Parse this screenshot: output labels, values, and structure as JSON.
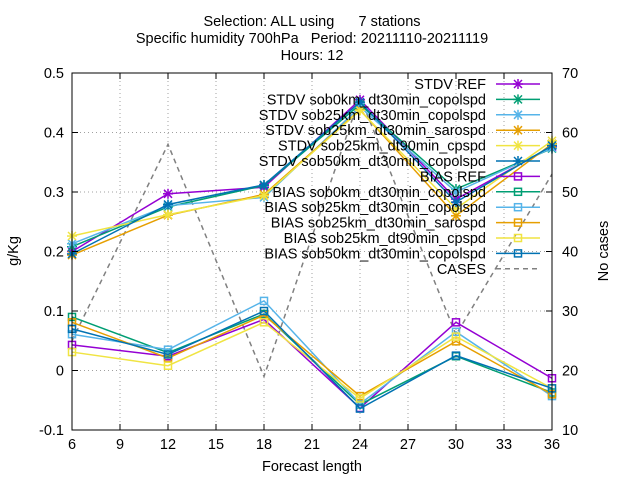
{
  "chart_data": {
    "type": "line",
    "title_lines": [
      "Selection: ALL using      7 stations",
      "Specific humidity 700hPa   Period: 20211110-20211119",
      "Hours: 12"
    ],
    "xlabel": "Forecast length",
    "ylabel": "g/Kg",
    "y2label": "No cases",
    "x": [
      6,
      12,
      18,
      24,
      30,
      36
    ],
    "xlim": [
      6,
      36
    ],
    "ylim": [
      -0.1,
      0.5
    ],
    "y2lim": [
      10,
      70
    ],
    "xticks": [
      6,
      9,
      12,
      15,
      18,
      21,
      24,
      27,
      30,
      33,
      36
    ],
    "yticks": [
      -0.1,
      0,
      0.1,
      0.2,
      0.3,
      0.4,
      0.5
    ],
    "ytick_labels": [
      "-0.1",
      "0",
      "0.1",
      "0.2",
      "0.3",
      "0.4",
      "0.5"
    ],
    "y2ticks": [
      10,
      20,
      30,
      40,
      50,
      60,
      70
    ],
    "grid": true,
    "legend_position": "top-right",
    "series": [
      {
        "name": "STDV REF",
        "color": "#9400d3",
        "marker": "x",
        "values": [
          0.2,
          0.297,
          0.308,
          0.455,
          0.288,
          0.376
        ]
      },
      {
        "name": "STDV sob0km_dt30min_copolspd",
        "color": "#009e73",
        "marker": "x",
        "values": [
          0.208,
          0.275,
          0.311,
          0.447,
          0.305,
          0.373
        ]
      },
      {
        "name": "STDV sob25km_dt30min_copolspd",
        "color": "#56b4e9",
        "marker": "x",
        "values": [
          0.213,
          0.277,
          0.291,
          0.443,
          0.3,
          0.374
        ]
      },
      {
        "name": "STDV sob25km_dt30min_sarospd",
        "color": "#e69f00",
        "marker": "x",
        "values": [
          0.194,
          0.261,
          0.296,
          0.438,
          0.26,
          0.381
        ]
      },
      {
        "name": "STDV sob25km_dt90min_cpspd",
        "color": "#f0e442",
        "marker": "x",
        "values": [
          0.226,
          0.262,
          0.294,
          0.437,
          0.272,
          0.386
        ]
      },
      {
        "name": "STDV sob50km_dt30min_copolspd",
        "color": "#0072b2",
        "marker": "x",
        "values": [
          0.196,
          0.279,
          0.312,
          0.451,
          0.283,
          0.378
        ]
      },
      {
        "name": "BIAS REF",
        "color": "#9400d3",
        "marker": "square",
        "values": [
          0.043,
          0.024,
          0.086,
          -0.063,
          0.081,
          -0.013
        ]
      },
      {
        "name": "BIAS sob0km_dt30min_copolspd",
        "color": "#009e73",
        "marker": "square",
        "values": [
          0.09,
          0.03,
          0.095,
          -0.057,
          0.024,
          -0.037
        ]
      },
      {
        "name": "BIAS sob25km_dt30min_copolspd",
        "color": "#56b4e9",
        "marker": "square",
        "values": [
          0.061,
          0.035,
          0.117,
          -0.056,
          0.065,
          -0.043
        ]
      },
      {
        "name": "BIAS sob25km_dt30min_sarospd",
        "color": "#e69f00",
        "marker": "square",
        "values": [
          0.081,
          0.021,
          0.093,
          -0.043,
          0.049,
          -0.04
        ]
      },
      {
        "name": "BIAS sob25km_dt90min_cpspd",
        "color": "#f0e442",
        "marker": "square",
        "values": [
          0.031,
          0.008,
          0.081,
          -0.047,
          0.057,
          -0.03
        ]
      },
      {
        "name": "BIAS sob50km_dt30min_copolspd",
        "color": "#0072b2",
        "marker": "square",
        "values": [
          0.07,
          0.027,
          0.1,
          -0.064,
          0.025,
          -0.03
        ]
      },
      {
        "name": "CASES",
        "color": "#808080",
        "marker": "none",
        "dashed": true,
        "axis": "y2",
        "values": [
          25,
          58,
          19,
          66,
          26,
          53
        ]
      }
    ]
  }
}
